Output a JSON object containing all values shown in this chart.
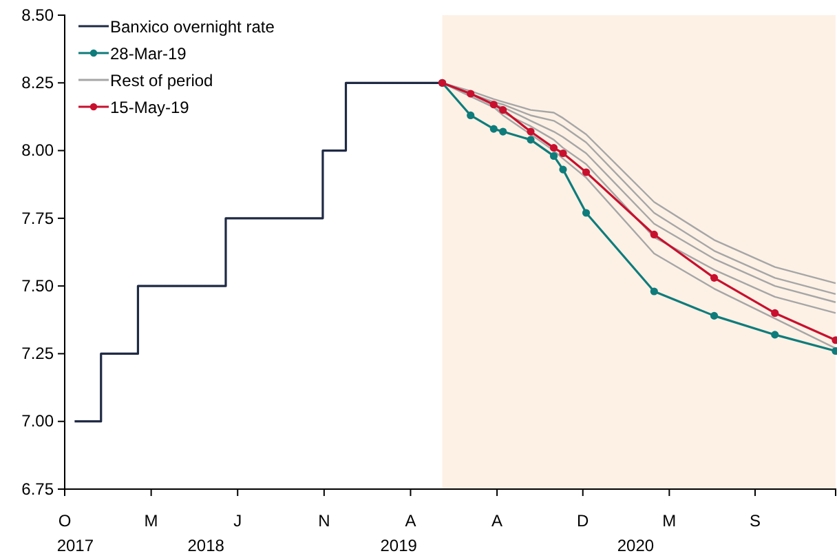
{
  "chart_data": {
    "type": "line",
    "xlim": [
      "2017-10-20",
      "2020-12-31"
    ],
    "ylim": [
      6.75,
      8.5
    ],
    "yticks": [
      {
        "value": 6.75,
        "label": "6.75"
      },
      {
        "value": 7,
        "label": "7.00"
      },
      {
        "value": 7.25,
        "label": "7.25"
      },
      {
        "value": 7.5,
        "label": "7.50"
      },
      {
        "value": 7.75,
        "label": "7.75"
      },
      {
        "value": 8,
        "label": "8.00"
      },
      {
        "value": 8.25,
        "label": "8.25"
      },
      {
        "value": 8.5,
        "label": "8.50"
      }
    ],
    "annotations": [
      "O",
      "M",
      "J",
      "N",
      "A",
      "A",
      "D",
      "M",
      "S"
    ],
    "xticks": [
      {
        "value": "2017-10-20",
        "label": null
      },
      {
        "value": "2018-02-28",
        "label": null
      },
      {
        "value": "2018-07-09",
        "label": null
      },
      {
        "value": "2018-11-17",
        "label": null
      },
      {
        "value": "2019-03-28",
        "label": null
      },
      {
        "value": "2019-08-06",
        "label": null
      },
      {
        "value": "2019-12-14",
        "label": null
      },
      {
        "value": "2020-04-23",
        "label": null
      },
      {
        "value": "2020-08-31",
        "label": null
      },
      {
        "value": "2017-11-05",
        "label": "2017"
      },
      {
        "value": "2018-05-22",
        "label": "2018"
      },
      {
        "value": "2019-03-10",
        "label": "2019"
      },
      {
        "value": "2020-03-03",
        "label": "2020"
      }
    ],
    "bands": [
      {
        "axis": "x",
        "from": "2019-05-15",
        "to": "2020-12-31",
        "color": "#fdf1e6"
      }
    ],
    "grid": false,
    "legend": "top left",
    "series": [
      {
        "name": "Banxico overnight rate",
        "type": "step",
        "color": "#1f2a44",
        "marker": "none",
        "x": [
          "2017-11-04",
          "2017-12-14",
          "2018-02-08",
          "2018-06-21",
          "2018-11-15",
          "2018-12-20",
          "2019-05-15"
        ],
        "values": [
          7.0,
          7.25,
          7.5,
          7.75,
          8.0,
          8.25,
          8.25
        ]
      },
      {
        "name": "28-Mar-19",
        "color": "#0e7c7b",
        "marker": "circle",
        "x": [
          "2019-05-15",
          "2019-06-27",
          "2019-08-01",
          "2019-08-15",
          "2019-09-26",
          "2019-10-31",
          "2019-11-14",
          "2019-12-19",
          "2020-03-31",
          "2020-06-30",
          "2020-09-30",
          "2020-12-31"
        ],
        "values": [
          8.25,
          8.13,
          8.08,
          8.07,
          8.04,
          7.98,
          7.93,
          7.77,
          7.48,
          7.39,
          7.32,
          7.26
        ]
      },
      {
        "name": "Rest of period",
        "color": "#a6a6a6",
        "marker": "none",
        "x": [
          "2019-05-15",
          "2019-06-27",
          "2019-08-01",
          "2019-08-15",
          "2019-09-26",
          "2019-10-31",
          "2019-11-14",
          "2019-12-19",
          "2020-03-31",
          "2020-06-30",
          "2020-09-30",
          "2020-12-31"
        ],
        "values": [
          8.25,
          8.22,
          8.19,
          8.18,
          8.15,
          8.14,
          8.12,
          8.06,
          7.81,
          7.67,
          7.57,
          7.51
        ]
      },
      {
        "color": "#a6a6a6",
        "marker": "none",
        "x": [
          "2019-05-15",
          "2019-06-27",
          "2019-08-01",
          "2019-08-15",
          "2019-09-26",
          "2019-10-31",
          "2019-11-14",
          "2019-12-19",
          "2020-03-31",
          "2020-06-30",
          "2020-09-30",
          "2020-12-31"
        ],
        "values": [
          8.25,
          8.21,
          8.18,
          8.17,
          8.13,
          8.11,
          8.09,
          8.03,
          7.77,
          7.63,
          7.53,
          7.47
        ]
      },
      {
        "color": "#a6a6a6",
        "marker": "none",
        "x": [
          "2019-05-15",
          "2019-06-27",
          "2019-08-01",
          "2019-08-15",
          "2019-09-26",
          "2019-10-31",
          "2019-11-14",
          "2019-12-19",
          "2020-03-31",
          "2020-06-30",
          "2020-09-30",
          "2020-12-31"
        ],
        "values": [
          8.25,
          8.21,
          8.17,
          8.16,
          8.11,
          8.07,
          8.05,
          7.99,
          7.73,
          7.6,
          7.5,
          7.44
        ]
      },
      {
        "color": "#a6a6a6",
        "marker": "none",
        "x": [
          "2019-05-15",
          "2019-06-27",
          "2019-08-01",
          "2019-08-15",
          "2019-09-26",
          "2019-10-31",
          "2019-11-14",
          "2019-12-19",
          "2020-03-31",
          "2020-06-30",
          "2020-09-30",
          "2020-12-31"
        ],
        "values": [
          8.25,
          8.2,
          8.16,
          8.14,
          8.09,
          8.04,
          8.01,
          7.95,
          7.68,
          7.56,
          7.46,
          7.4
        ]
      },
      {
        "color": "#a6a6a6",
        "marker": "none",
        "x": [
          "2019-05-15",
          "2019-06-27",
          "2019-08-01",
          "2019-08-15",
          "2019-09-26",
          "2019-10-31",
          "2019-11-14",
          "2019-12-19",
          "2020-03-31",
          "2020-06-30",
          "2020-09-30",
          "2020-12-31"
        ],
        "values": [
          8.25,
          8.2,
          8.16,
          8.13,
          8.06,
          8.0,
          7.97,
          7.9,
          7.62,
          7.49,
          7.38,
          7.27
        ]
      },
      {
        "name": "15-May-19",
        "color": "#c8102e",
        "marker": "circle",
        "x": [
          "2019-05-15",
          "2019-06-27",
          "2019-08-01",
          "2019-08-15",
          "2019-09-26",
          "2019-10-31",
          "2019-11-14",
          "2019-12-19",
          "2020-03-31",
          "2020-06-30",
          "2020-09-30",
          "2020-12-31"
        ],
        "values": [
          8.25,
          8.21,
          8.17,
          8.15,
          8.07,
          8.01,
          7.99,
          7.92,
          7.69,
          7.53,
          7.4,
          7.3
        ]
      }
    ]
  }
}
